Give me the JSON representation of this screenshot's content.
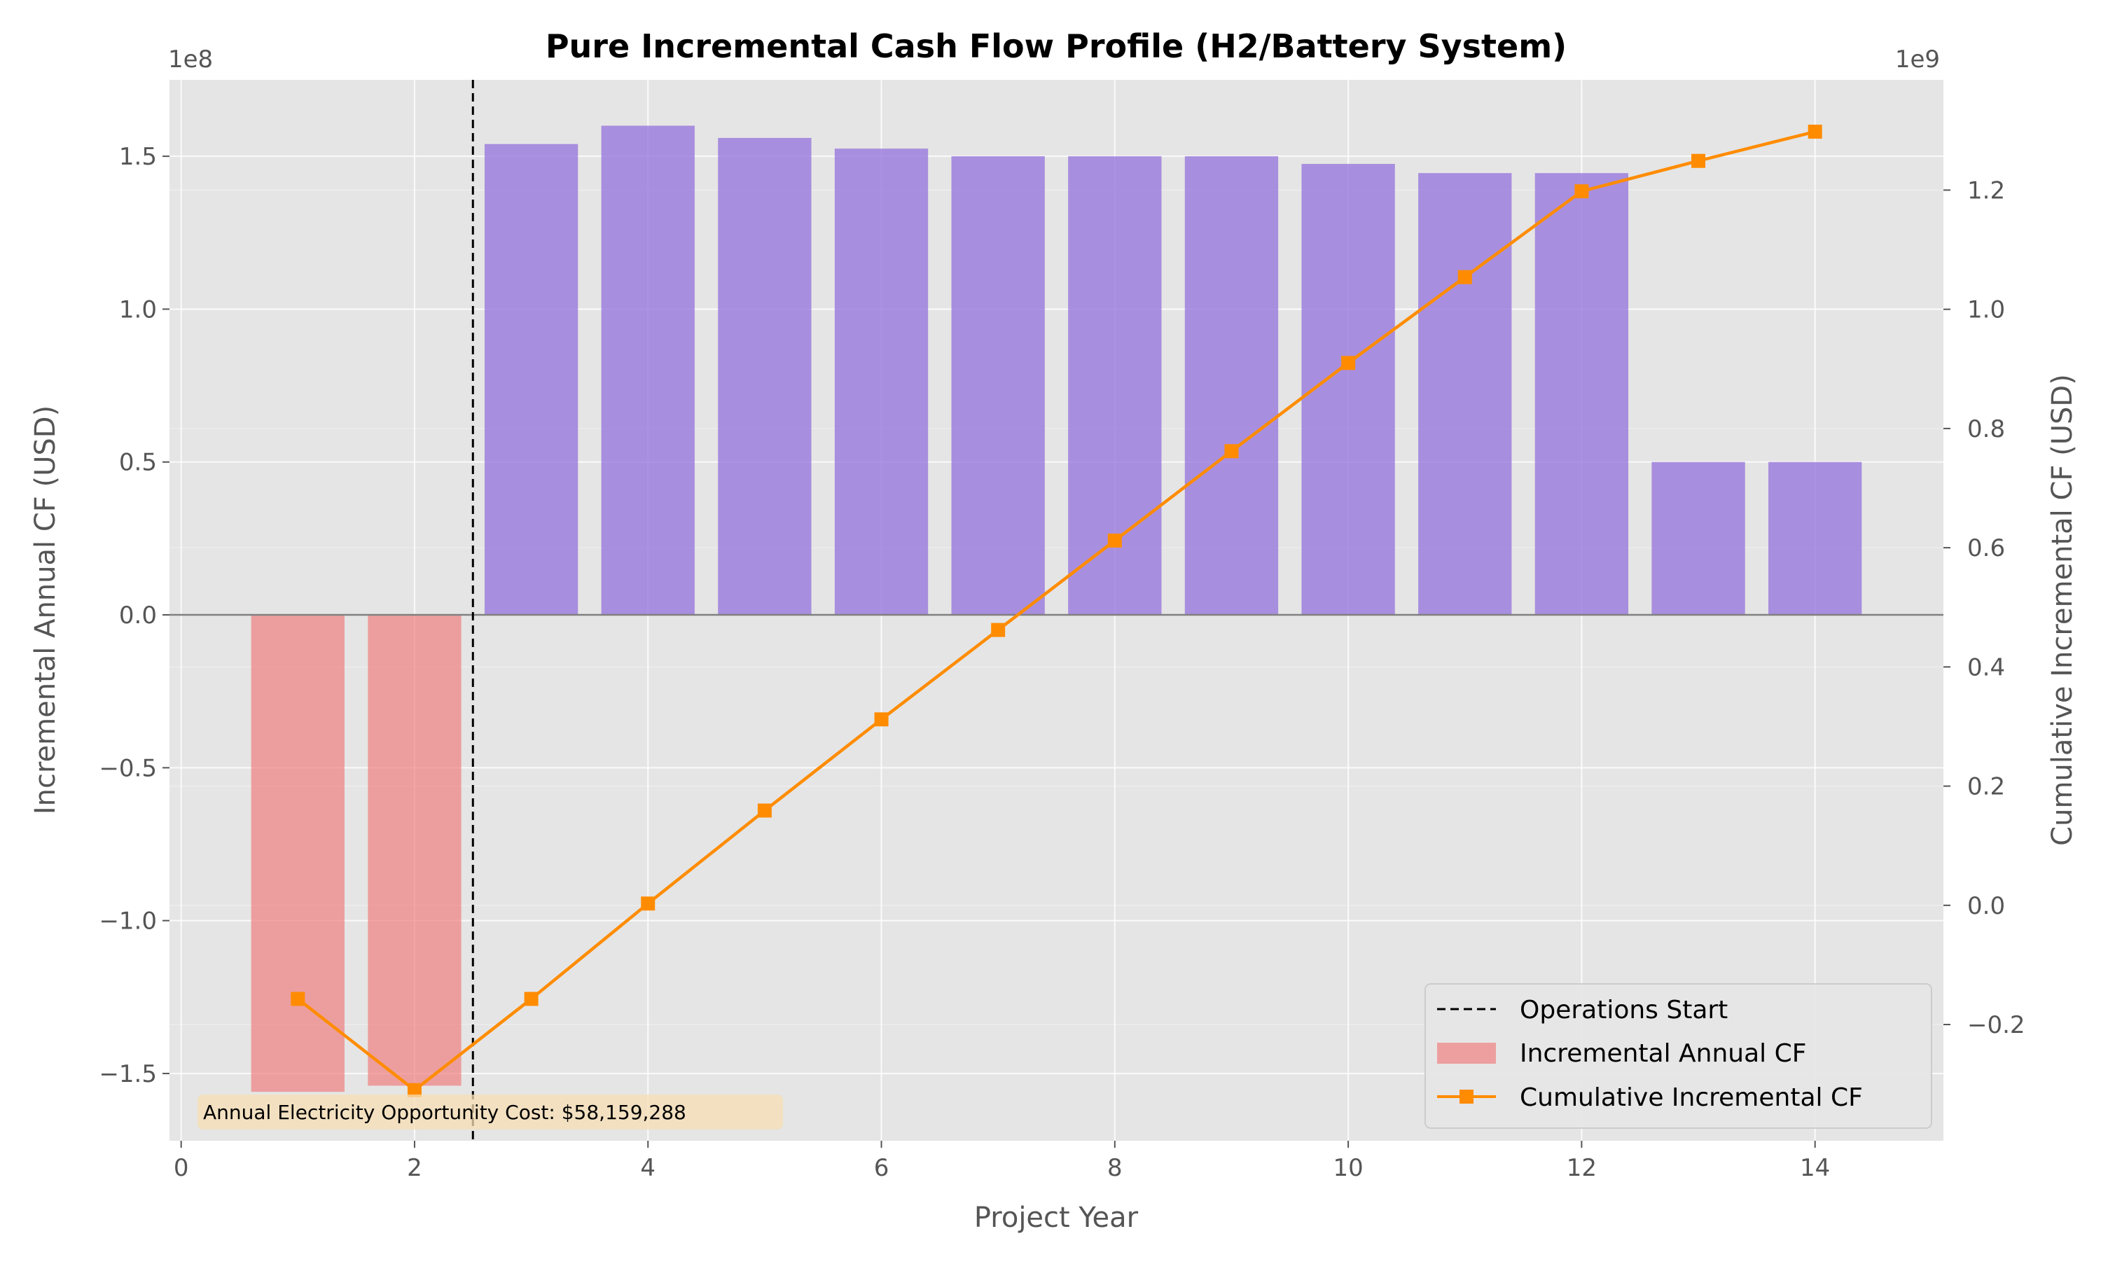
{
  "chart_data": {
    "type": "bar",
    "title": "Pure Incremental Cash Flow Profile (H2/Battery System)",
    "xlabel": "Project Year",
    "ylabel_left": "Incremental Annual CF (USD)",
    "ylabel_right": "Cumulative Incremental CF (USD)",
    "offset_left": "1e8",
    "offset_right": "1e9",
    "xlim": [
      -0.1,
      15.1
    ],
    "ylim_left": [
      -1.72,
      1.75
    ],
    "ylim_right": [
      -0.395,
      1.385
    ],
    "x_ticks": [
      0,
      2,
      4,
      6,
      8,
      10,
      12,
      14
    ],
    "x_tick_labels": [
      "0",
      "2",
      "4",
      "6",
      "8",
      "10",
      "12",
      "14"
    ],
    "y_left_ticks": [
      -1.5,
      -1.0,
      -0.5,
      0.0,
      0.5,
      1.0,
      1.5
    ],
    "y_left_tick_labels": [
      "−1.5",
      "−1.0",
      "−0.5",
      "0.0",
      "0.5",
      "1.0",
      "1.5"
    ],
    "y_right_ticks": [
      -0.2,
      0.0,
      0.2,
      0.4,
      0.6,
      0.8,
      1.0,
      1.2
    ],
    "y_right_tick_labels": [
      "−0.2",
      "0.0",
      "0.2",
      "0.4",
      "0.6",
      "0.8",
      "1.0",
      "1.2"
    ],
    "grid": true,
    "legend_position": "bottom-right",
    "series": [
      {
        "name": "Incremental Annual CF",
        "kind": "bar",
        "axis": "left",
        "x": [
          1,
          2,
          3,
          4,
          5,
          6,
          7,
          8,
          9,
          10,
          11,
          12,
          13,
          14
        ],
        "values": [
          -1.56,
          -1.54,
          1.54,
          1.6,
          1.56,
          1.525,
          1.5,
          1.5,
          1.5,
          1.475,
          1.445,
          1.445,
          0.5,
          0.5
        ],
        "color_negative": "#f08080",
        "color_positive": "#9370db"
      },
      {
        "name": "Cumulative Incremental CF",
        "kind": "line",
        "axis": "right",
        "x": [
          1,
          2,
          3,
          4,
          5,
          6,
          7,
          8,
          9,
          10,
          11,
          12,
          13,
          14
        ],
        "values": [
          -0.157,
          -0.31,
          -0.157,
          0.003,
          0.159,
          0.312,
          0.462,
          0.612,
          0.762,
          0.91,
          1.054,
          1.198,
          1.249,
          1.298
        ],
        "color": "#ff8c00",
        "marker": "square"
      }
    ],
    "vline": {
      "x": 2.5,
      "label": "Operations Start",
      "style": "dashed",
      "color": "#000000"
    },
    "annotation": {
      "text": "Annual Electricity Opportunity Cost: $58,159,288",
      "background": "#f5deb3",
      "position": "bottom-left"
    }
  },
  "colors": {
    "plot_background": "#e5e5e5",
    "grid": "#ffffff",
    "zero_line": "#808080"
  }
}
